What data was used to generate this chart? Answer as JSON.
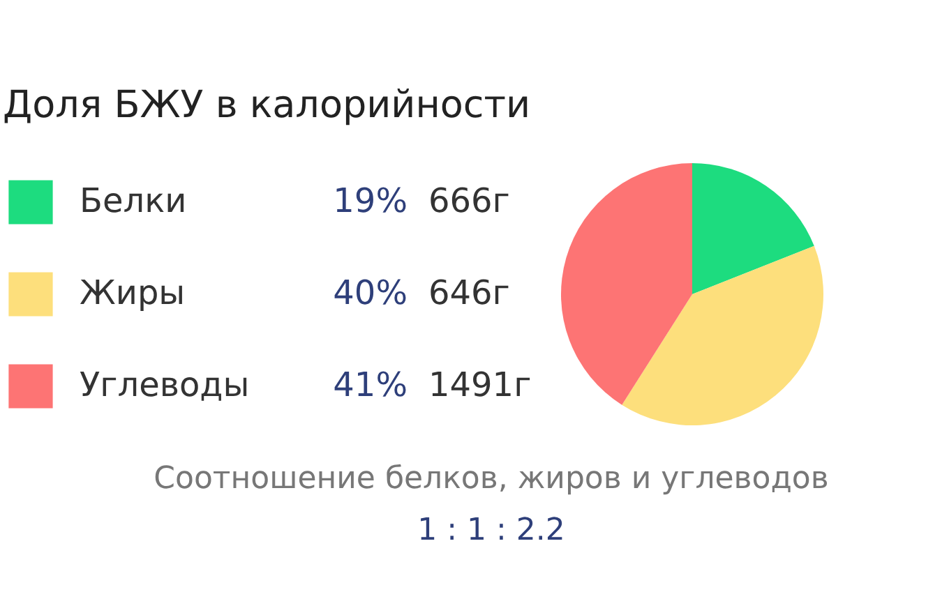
{
  "chart_data": {
    "type": "pie",
    "title": "Доля БЖУ в калорийности",
    "subtitle": "Соотношение белков, жиров и углеводов",
    "categories": [
      "Белки",
      "Жиры",
      "Углеводы"
    ],
    "values": [
      19,
      40,
      41
    ],
    "value_labels": [
      "19%",
      "40%",
      "41%"
    ],
    "colors": [
      "#1ddc7f",
      "#fddf7c",
      "#fd7474"
    ],
    "annotations": [
      "666г",
      "646г",
      "1491г",
      "1 : 1 : 2.2"
    ],
    "legend": "left"
  }
}
